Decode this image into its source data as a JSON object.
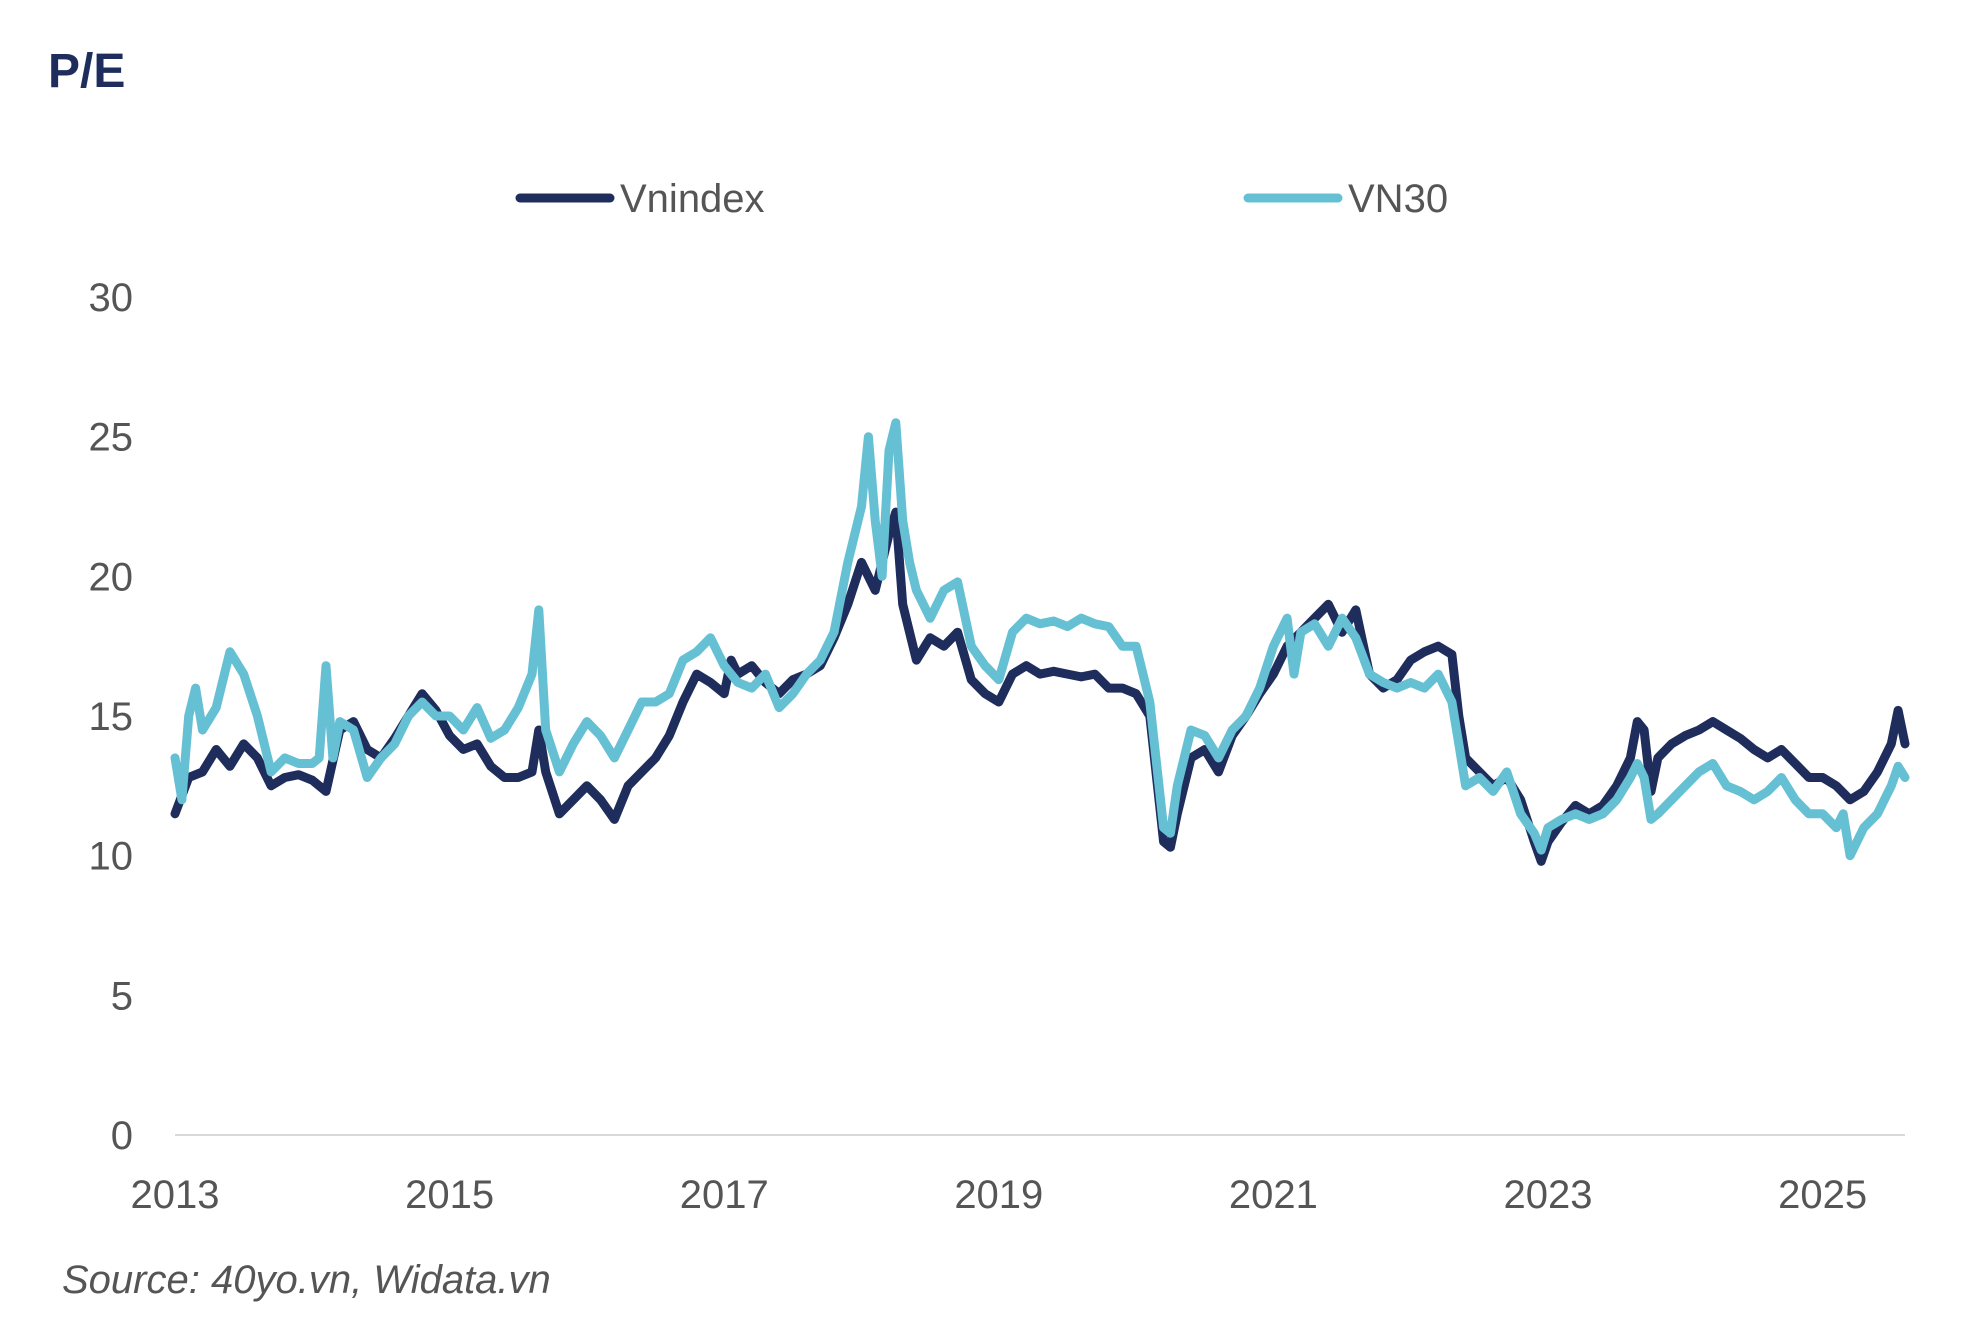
{
  "title": "P/E",
  "source": "Source: 40yo.vn, Widata.vn",
  "colors": {
    "title": "#1f2d5c",
    "text": "#555555",
    "axis": "#d9d9d9"
  },
  "chart_data": {
    "type": "line",
    "title": "P/E",
    "xlabel": "",
    "ylabel": "",
    "xlim": [
      2013.0,
      2025.6
    ],
    "ylim": [
      0,
      30
    ],
    "yticks": [
      "0",
      "5",
      "10",
      "15",
      "20",
      "25",
      "30"
    ],
    "xticks": [
      "2013",
      "2015",
      "2017",
      "2019",
      "2021",
      "2023",
      "2025"
    ],
    "grid": false,
    "legend": "top",
    "series": [
      {
        "name": "Vnindex",
        "color": "#1f2d5c",
        "points": [
          [
            2013.0,
            11.5
          ],
          [
            2013.1,
            12.8
          ],
          [
            2013.2,
            13.0
          ],
          [
            2013.3,
            13.8
          ],
          [
            2013.4,
            13.2
          ],
          [
            2013.5,
            14.0
          ],
          [
            2013.6,
            13.5
          ],
          [
            2013.7,
            12.5
          ],
          [
            2013.8,
            12.8
          ],
          [
            2013.9,
            12.9
          ],
          [
            2014.0,
            12.7
          ],
          [
            2014.1,
            12.3
          ],
          [
            2014.2,
            14.5
          ],
          [
            2014.3,
            14.8
          ],
          [
            2014.4,
            13.8
          ],
          [
            2014.5,
            13.5
          ],
          [
            2014.6,
            14.2
          ],
          [
            2014.7,
            15.0
          ],
          [
            2014.8,
            15.8
          ],
          [
            2014.9,
            15.2
          ],
          [
            2015.0,
            14.3
          ],
          [
            2015.1,
            13.8
          ],
          [
            2015.2,
            14.0
          ],
          [
            2015.3,
            13.2
          ],
          [
            2015.4,
            12.8
          ],
          [
            2015.5,
            12.8
          ],
          [
            2015.6,
            13.0
          ],
          [
            2015.65,
            14.5
          ],
          [
            2015.7,
            13.0
          ],
          [
            2015.8,
            11.5
          ],
          [
            2015.9,
            12.0
          ],
          [
            2016.0,
            12.5
          ],
          [
            2016.1,
            12.0
          ],
          [
            2016.2,
            11.3
          ],
          [
            2016.3,
            12.5
          ],
          [
            2016.4,
            13.0
          ],
          [
            2016.5,
            13.5
          ],
          [
            2016.6,
            14.3
          ],
          [
            2016.7,
            15.5
          ],
          [
            2016.8,
            16.5
          ],
          [
            2016.9,
            16.2
          ],
          [
            2017.0,
            15.8
          ],
          [
            2017.05,
            17.0
          ],
          [
            2017.1,
            16.5
          ],
          [
            2017.2,
            16.8
          ],
          [
            2017.3,
            16.2
          ],
          [
            2017.4,
            15.8
          ],
          [
            2017.5,
            16.3
          ],
          [
            2017.6,
            16.5
          ],
          [
            2017.7,
            16.8
          ],
          [
            2017.8,
            17.8
          ],
          [
            2017.9,
            19.0
          ],
          [
            2018.0,
            20.5
          ],
          [
            2018.1,
            19.5
          ],
          [
            2018.2,
            21.5
          ],
          [
            2018.25,
            22.3
          ],
          [
            2018.3,
            19.0
          ],
          [
            2018.4,
            17.0
          ],
          [
            2018.5,
            17.8
          ],
          [
            2018.6,
            17.5
          ],
          [
            2018.7,
            18.0
          ],
          [
            2018.8,
            16.3
          ],
          [
            2018.9,
            15.8
          ],
          [
            2019.0,
            15.5
          ],
          [
            2019.1,
            16.5
          ],
          [
            2019.2,
            16.8
          ],
          [
            2019.3,
            16.5
          ],
          [
            2019.4,
            16.6
          ],
          [
            2019.5,
            16.5
          ],
          [
            2019.6,
            16.4
          ],
          [
            2019.7,
            16.5
          ],
          [
            2019.8,
            16.0
          ],
          [
            2019.9,
            16.0
          ],
          [
            2020.0,
            15.8
          ],
          [
            2020.1,
            15.0
          ],
          [
            2020.2,
            10.5
          ],
          [
            2020.25,
            10.3
          ],
          [
            2020.3,
            11.5
          ],
          [
            2020.4,
            13.5
          ],
          [
            2020.5,
            13.8
          ],
          [
            2020.6,
            13.0
          ],
          [
            2020.7,
            14.3
          ],
          [
            2020.8,
            15.0
          ],
          [
            2020.9,
            15.8
          ],
          [
            2021.0,
            16.5
          ],
          [
            2021.1,
            17.5
          ],
          [
            2021.2,
            18.0
          ],
          [
            2021.3,
            18.5
          ],
          [
            2021.4,
            19.0
          ],
          [
            2021.5,
            18.0
          ],
          [
            2021.6,
            18.8
          ],
          [
            2021.7,
            16.5
          ],
          [
            2021.8,
            16.0
          ],
          [
            2021.9,
            16.3
          ],
          [
            2022.0,
            17.0
          ],
          [
            2022.1,
            17.3
          ],
          [
            2022.2,
            17.5
          ],
          [
            2022.3,
            17.2
          ],
          [
            2022.35,
            15.0
          ],
          [
            2022.4,
            13.5
          ],
          [
            2022.5,
            13.0
          ],
          [
            2022.6,
            12.5
          ],
          [
            2022.7,
            12.8
          ],
          [
            2022.8,
            12.0
          ],
          [
            2022.9,
            10.5
          ],
          [
            2022.95,
            9.8
          ],
          [
            2023.0,
            10.5
          ],
          [
            2023.1,
            11.2
          ],
          [
            2023.2,
            11.8
          ],
          [
            2023.3,
            11.5
          ],
          [
            2023.4,
            11.8
          ],
          [
            2023.5,
            12.5
          ],
          [
            2023.6,
            13.5
          ],
          [
            2023.65,
            14.8
          ],
          [
            2023.7,
            14.5
          ],
          [
            2023.75,
            12.3
          ],
          [
            2023.8,
            13.5
          ],
          [
            2023.9,
            14.0
          ],
          [
            2024.0,
            14.3
          ],
          [
            2024.1,
            14.5
          ],
          [
            2024.2,
            14.8
          ],
          [
            2024.3,
            14.5
          ],
          [
            2024.4,
            14.2
          ],
          [
            2024.5,
            13.8
          ],
          [
            2024.6,
            13.5
          ],
          [
            2024.7,
            13.8
          ],
          [
            2024.8,
            13.3
          ],
          [
            2024.9,
            12.8
          ],
          [
            2025.0,
            12.8
          ],
          [
            2025.1,
            12.5
          ],
          [
            2025.2,
            12.0
          ],
          [
            2025.3,
            12.3
          ],
          [
            2025.4,
            13.0
          ],
          [
            2025.5,
            14.0
          ],
          [
            2025.55,
            15.2
          ],
          [
            2025.6,
            14.0
          ]
        ]
      },
      {
        "name": "VN30",
        "color": "#66c0d3",
        "points": [
          [
            2013.0,
            13.5
          ],
          [
            2013.05,
            12.0
          ],
          [
            2013.1,
            15.0
          ],
          [
            2013.15,
            16.0
          ],
          [
            2013.2,
            14.5
          ],
          [
            2013.3,
            15.3
          ],
          [
            2013.4,
            17.3
          ],
          [
            2013.5,
            16.5
          ],
          [
            2013.6,
            15.0
          ],
          [
            2013.7,
            13.0
          ],
          [
            2013.8,
            13.5
          ],
          [
            2013.9,
            13.3
          ],
          [
            2014.0,
            13.3
          ],
          [
            2014.05,
            13.5
          ],
          [
            2014.1,
            16.8
          ],
          [
            2014.15,
            13.5
          ],
          [
            2014.2,
            14.8
          ],
          [
            2014.3,
            14.5
          ],
          [
            2014.4,
            12.8
          ],
          [
            2014.5,
            13.5
          ],
          [
            2014.6,
            14.0
          ],
          [
            2014.7,
            15.0
          ],
          [
            2014.8,
            15.5
          ],
          [
            2014.9,
            15.0
          ],
          [
            2015.0,
            15.0
          ],
          [
            2015.1,
            14.5
          ],
          [
            2015.2,
            15.3
          ],
          [
            2015.3,
            14.2
          ],
          [
            2015.4,
            14.5
          ],
          [
            2015.5,
            15.3
          ],
          [
            2015.6,
            16.5
          ],
          [
            2015.65,
            18.8
          ],
          [
            2015.7,
            14.5
          ],
          [
            2015.8,
            13.0
          ],
          [
            2015.9,
            14.0
          ],
          [
            2016.0,
            14.8
          ],
          [
            2016.1,
            14.3
          ],
          [
            2016.2,
            13.5
          ],
          [
            2016.3,
            14.5
          ],
          [
            2016.4,
            15.5
          ],
          [
            2016.5,
            15.5
          ],
          [
            2016.6,
            15.8
          ],
          [
            2016.7,
            17.0
          ],
          [
            2016.8,
            17.3
          ],
          [
            2016.9,
            17.8
          ],
          [
            2017.0,
            16.8
          ],
          [
            2017.1,
            16.2
          ],
          [
            2017.2,
            16.0
          ],
          [
            2017.3,
            16.5
          ],
          [
            2017.4,
            15.3
          ],
          [
            2017.5,
            15.8
          ],
          [
            2017.6,
            16.5
          ],
          [
            2017.7,
            17.0
          ],
          [
            2017.8,
            18.0
          ],
          [
            2017.9,
            20.5
          ],
          [
            2018.0,
            22.5
          ],
          [
            2018.05,
            25.0
          ],
          [
            2018.1,
            22.0
          ],
          [
            2018.15,
            20.0
          ],
          [
            2018.2,
            24.5
          ],
          [
            2018.25,
            25.5
          ],
          [
            2018.3,
            22.0
          ],
          [
            2018.35,
            20.5
          ],
          [
            2018.4,
            19.5
          ],
          [
            2018.5,
            18.5
          ],
          [
            2018.6,
            19.5
          ],
          [
            2018.7,
            19.8
          ],
          [
            2018.8,
            17.5
          ],
          [
            2018.9,
            16.8
          ],
          [
            2019.0,
            16.3
          ],
          [
            2019.1,
            18.0
          ],
          [
            2019.2,
            18.5
          ],
          [
            2019.3,
            18.3
          ],
          [
            2019.4,
            18.4
          ],
          [
            2019.5,
            18.2
          ],
          [
            2019.6,
            18.5
          ],
          [
            2019.7,
            18.3
          ],
          [
            2019.8,
            18.2
          ],
          [
            2019.9,
            17.5
          ],
          [
            2020.0,
            17.5
          ],
          [
            2020.05,
            16.5
          ],
          [
            2020.1,
            15.5
          ],
          [
            2020.2,
            11.0
          ],
          [
            2020.25,
            10.8
          ],
          [
            2020.3,
            12.5
          ],
          [
            2020.4,
            14.5
          ],
          [
            2020.5,
            14.3
          ],
          [
            2020.6,
            13.5
          ],
          [
            2020.7,
            14.5
          ],
          [
            2020.8,
            15.0
          ],
          [
            2020.9,
            16.0
          ],
          [
            2021.0,
            17.5
          ],
          [
            2021.1,
            18.5
          ],
          [
            2021.15,
            16.5
          ],
          [
            2021.2,
            18.0
          ],
          [
            2021.3,
            18.3
          ],
          [
            2021.4,
            17.5
          ],
          [
            2021.5,
            18.5
          ],
          [
            2021.6,
            17.8
          ],
          [
            2021.7,
            16.5
          ],
          [
            2021.8,
            16.2
          ],
          [
            2021.9,
            16.0
          ],
          [
            2022.0,
            16.2
          ],
          [
            2022.1,
            16.0
          ],
          [
            2022.2,
            16.5
          ],
          [
            2022.3,
            15.5
          ],
          [
            2022.35,
            14.0
          ],
          [
            2022.4,
            12.5
          ],
          [
            2022.5,
            12.8
          ],
          [
            2022.6,
            12.3
          ],
          [
            2022.7,
            13.0
          ],
          [
            2022.8,
            11.5
          ],
          [
            2022.9,
            10.8
          ],
          [
            2022.95,
            10.2
          ],
          [
            2023.0,
            11.0
          ],
          [
            2023.1,
            11.3
          ],
          [
            2023.2,
            11.5
          ],
          [
            2023.3,
            11.3
          ],
          [
            2023.4,
            11.5
          ],
          [
            2023.5,
            12.0
          ],
          [
            2023.6,
            12.8
          ],
          [
            2023.65,
            13.3
          ],
          [
            2023.7,
            12.8
          ],
          [
            2023.75,
            11.3
          ],
          [
            2023.8,
            11.5
          ],
          [
            2023.9,
            12.0
          ],
          [
            2024.0,
            12.5
          ],
          [
            2024.1,
            13.0
          ],
          [
            2024.2,
            13.3
          ],
          [
            2024.3,
            12.5
          ],
          [
            2024.4,
            12.3
          ],
          [
            2024.5,
            12.0
          ],
          [
            2024.6,
            12.3
          ],
          [
            2024.7,
            12.8
          ],
          [
            2024.8,
            12.0
          ],
          [
            2024.9,
            11.5
          ],
          [
            2025.0,
            11.5
          ],
          [
            2025.1,
            11.0
          ],
          [
            2025.15,
            11.5
          ],
          [
            2025.2,
            10.0
          ],
          [
            2025.3,
            11.0
          ],
          [
            2025.4,
            11.5
          ],
          [
            2025.5,
            12.5
          ],
          [
            2025.55,
            13.2
          ],
          [
            2025.6,
            12.8
          ]
        ]
      }
    ]
  }
}
